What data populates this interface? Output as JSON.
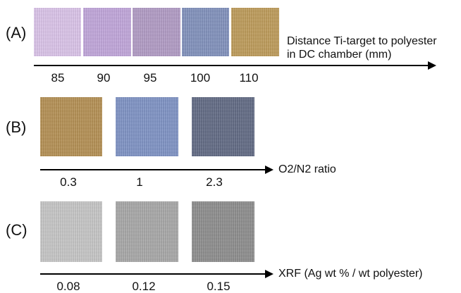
{
  "panel_a": {
    "label": "(A)",
    "axis_label_line1": "Distance Ti-target to polyester",
    "axis_label_line2": "in DC chamber (mm)",
    "ticks": [
      "85",
      "90",
      "95",
      "100",
      "110"
    ],
    "swatch_colors": [
      "#e0c7f0",
      "#c3a6e0",
      "#b29ac8",
      "#7d8fbe",
      "#c09a52"
    ]
  },
  "panel_b": {
    "label": "(B)",
    "axis_label": "O2/N2 ratio",
    "ticks": [
      "0.3",
      "1",
      "2.3"
    ],
    "swatch_colors": [
      "#b78f4d",
      "#7c92c8",
      "#5c6682"
    ]
  },
  "panel_c": {
    "label": "(C)",
    "axis_label": "XRF (Ag wt % / wt polyester)",
    "ticks": [
      "0.08",
      "0.12",
      "0.15"
    ],
    "swatch_colors": [
      "#cacaca",
      "#a9a9a9",
      "#8c8c8c"
    ]
  }
}
